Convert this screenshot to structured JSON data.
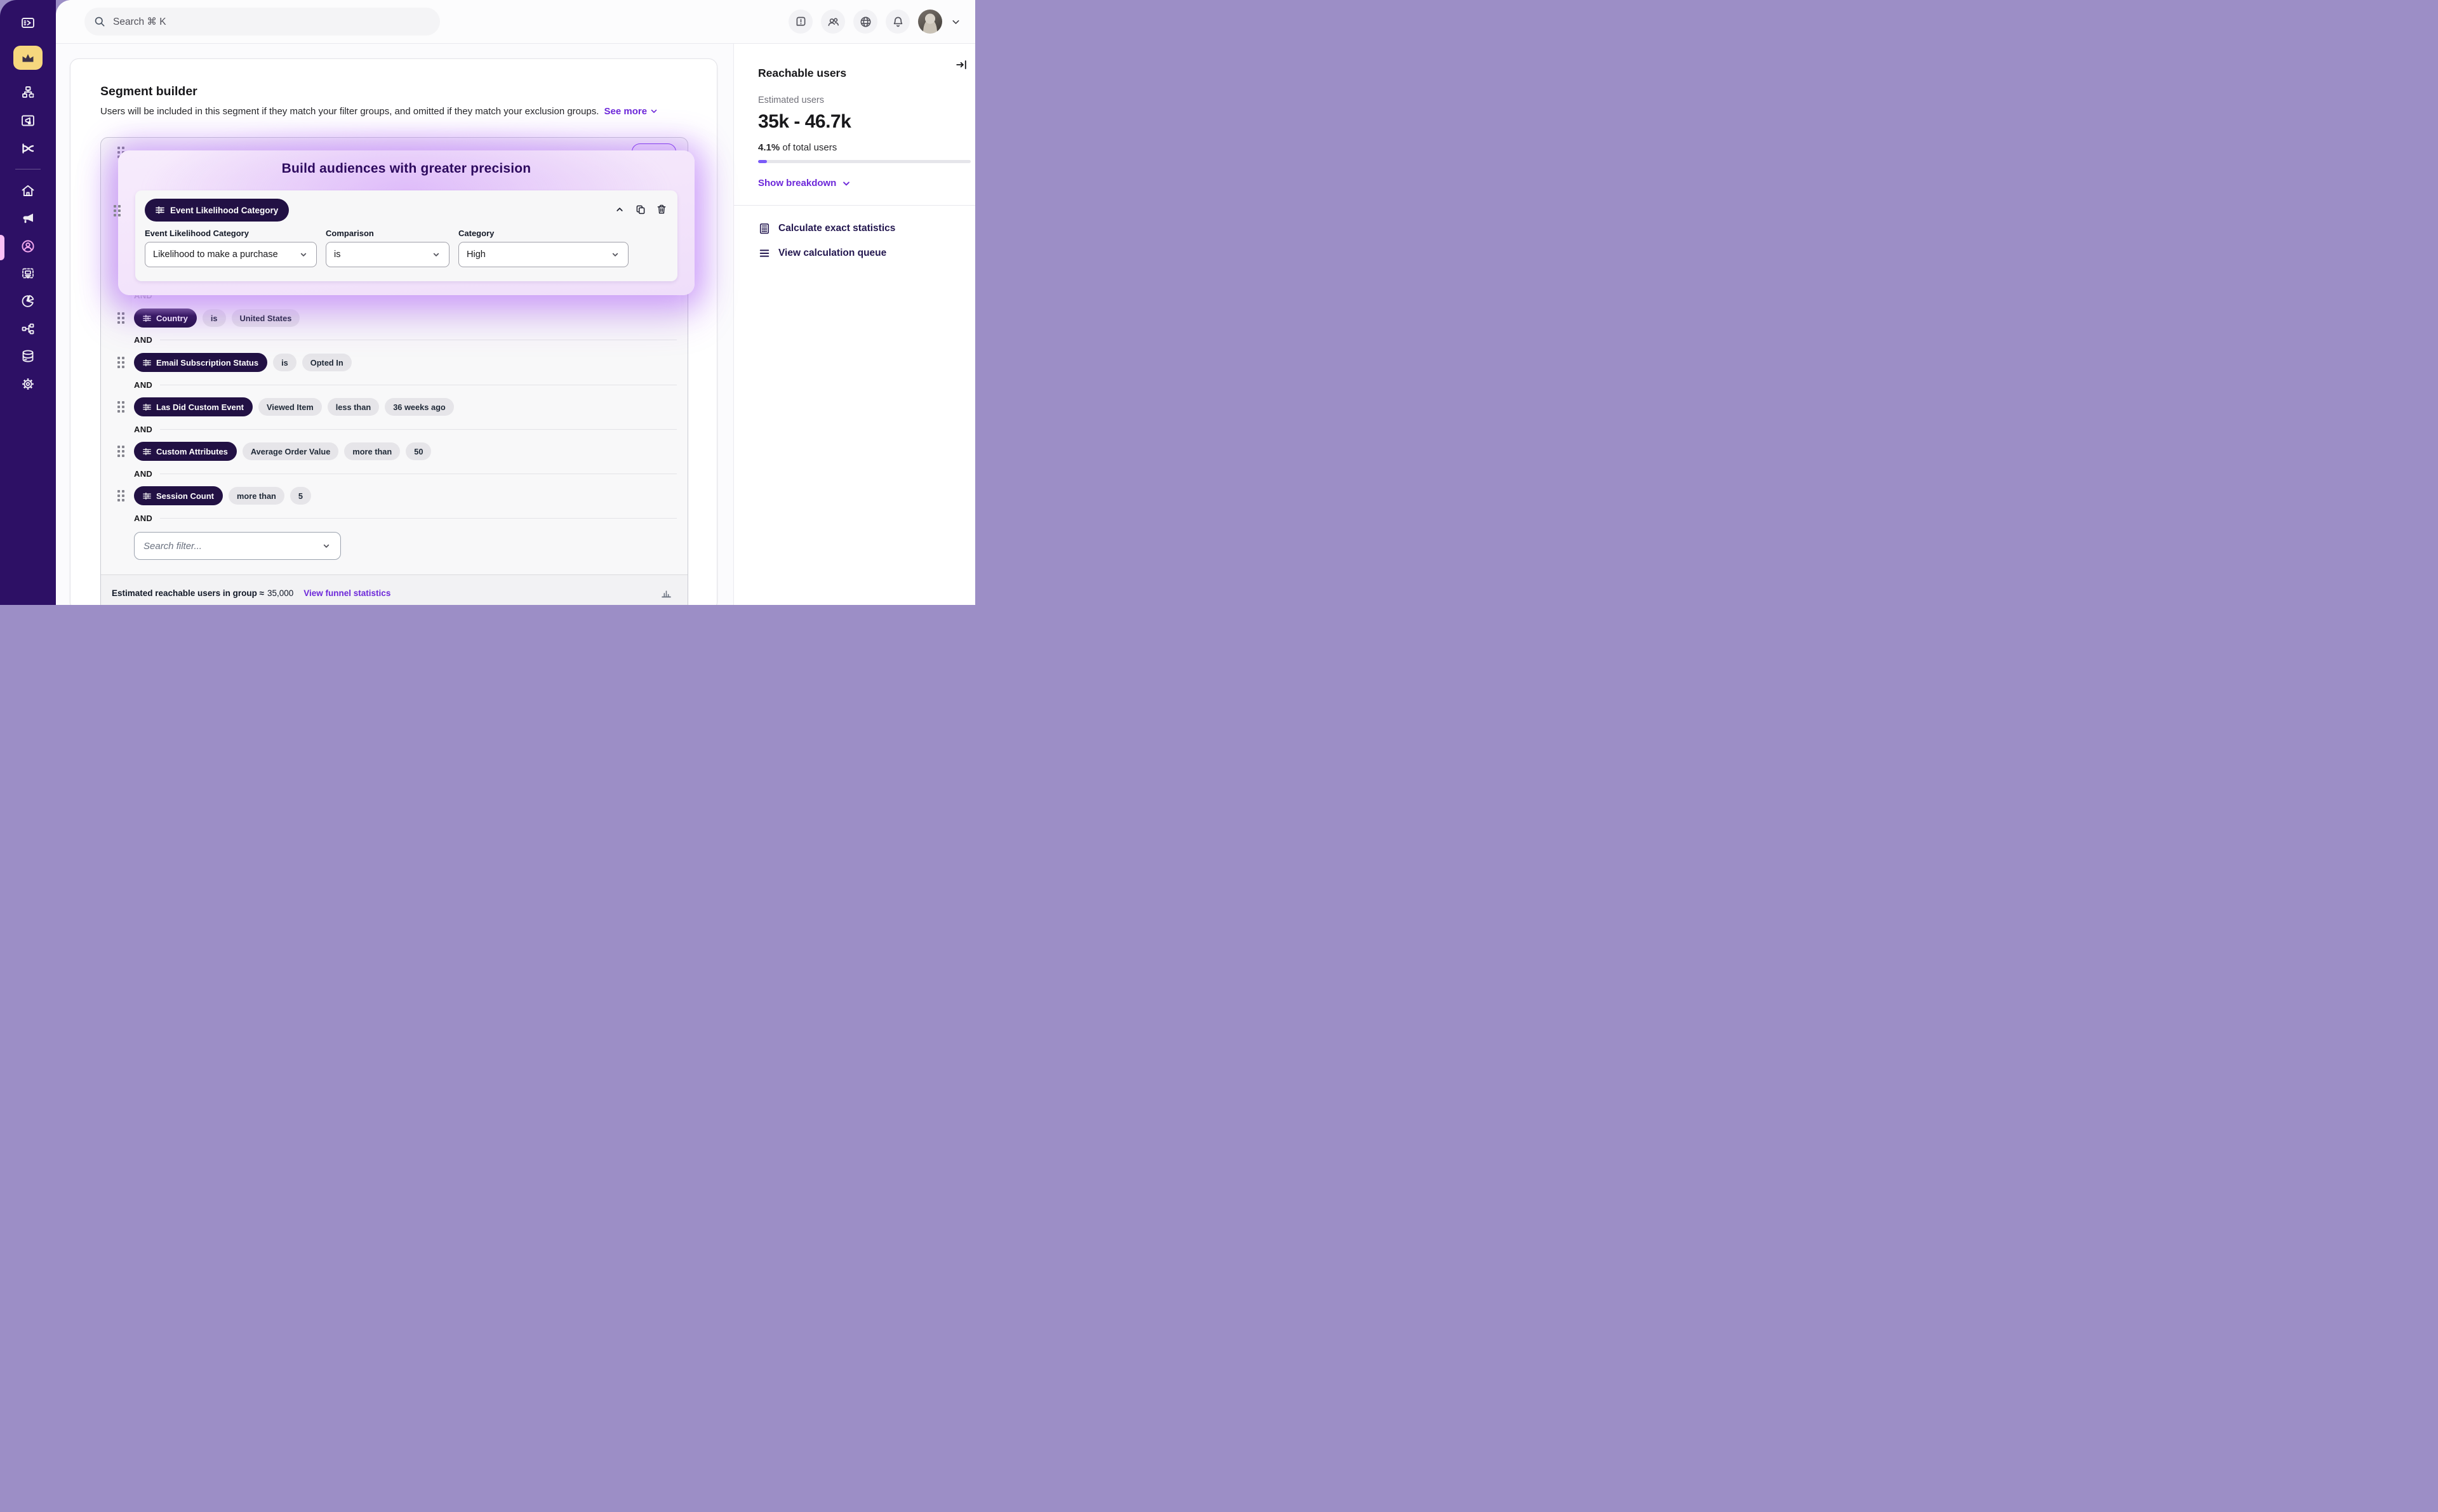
{
  "topbar": {
    "search_placeholder": "Search ⌘ K",
    "icon_names": [
      "alert-icon",
      "people-icon",
      "globe-icon",
      "bell-icon",
      "avatar",
      "chevron-down-icon"
    ]
  },
  "sidebar": {
    "icon_names": [
      "console-icon",
      "crown-icon",
      "org-chart-icon",
      "ad-frame-icon",
      "shuffle-icon",
      "home-icon",
      "megaphone-icon",
      "audience-icon",
      "canvas-icon",
      "pie-chart-icon",
      "network-icon",
      "database-icon",
      "gear-icon"
    ],
    "active_item": "audience-icon",
    "colors": {
      "bg": "#2D1065",
      "active_tile": "#F6D77E",
      "active_icon": "#F2A7EE"
    }
  },
  "segment_builder": {
    "title": "Segment builder",
    "description": "Users will be included in this segment if they match your filter groups, and omitted if they match your exclusion groups.",
    "see_more": "See more"
  },
  "popup": {
    "title": "Build audiences with greater precision",
    "pill": "Event Likelihood Category",
    "icon_names": [
      "chevron-up-icon",
      "copy-icon",
      "trash-icon"
    ],
    "fields": [
      {
        "label": "Event Likelihood Category",
        "value": "Likelihood to make a purchase"
      },
      {
        "label": "Comparison",
        "value": "is"
      },
      {
        "label": "Category",
        "value": "High"
      }
    ]
  },
  "filter_group": {
    "and_label": "AND",
    "rows": [
      {
        "field": "Country",
        "pills": [
          "is",
          "United States"
        ]
      },
      {
        "field": "Email Subscription Status",
        "pills": [
          "is",
          "Opted In"
        ]
      },
      {
        "field": "Las Did Custom Event",
        "pills": [
          "Viewed Item",
          "less than",
          "36 weeks ago"
        ]
      },
      {
        "field": "Custom Attributes",
        "pills": [
          "Average Order Value",
          "more than",
          "50"
        ]
      },
      {
        "field": "Session Count",
        "pills": [
          "more than",
          "5"
        ]
      }
    ],
    "search_placeholder": "Search filter...",
    "footer": {
      "estimate_label": "Estimated reachable users in group ≈",
      "estimate_value": "35,000",
      "link": "View funnel statistics"
    }
  },
  "right_panel": {
    "title": "Reachable users",
    "estimated_label": "Estimated users",
    "range": "35k - 46.7k",
    "percent": "4.1%",
    "percent_text": " of total users",
    "progress_percent": 4.1,
    "show_breakdown": "Show breakdown",
    "actions": [
      {
        "label": "Calculate exact statistics",
        "icon": "calculator-icon"
      },
      {
        "label": "View calculation queue",
        "icon": "list-icon"
      }
    ]
  },
  "colors": {
    "accent_purple": "#6D28D9",
    "deep_purple": "#2D1065",
    "pill_dark": "#221144",
    "glow_purple": "#A855F7",
    "brand_yellow": "#F6D77E",
    "progress_fill": "#7A5AF8"
  }
}
